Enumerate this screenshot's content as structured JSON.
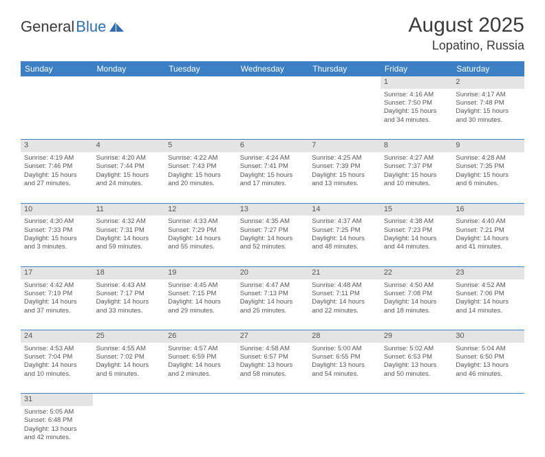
{
  "logo": {
    "text1": "General",
    "text2": "Blue"
  },
  "title": "August 2025",
  "location": "Lopatino, Russia",
  "colors": {
    "header_bg": "#3b7fc4",
    "header_fg": "#ffffff",
    "daynum_bg": "#e4e4e4",
    "text": "#444444",
    "rule": "#3b7fc4",
    "logo_gray": "#3a3a3a",
    "logo_blue": "#2f6fb0"
  },
  "weekdays": [
    "Sunday",
    "Monday",
    "Tuesday",
    "Wednesday",
    "Thursday",
    "Friday",
    "Saturday"
  ],
  "weeks": [
    [
      null,
      null,
      null,
      null,
      null,
      {
        "n": "1",
        "sunrise": "4:16 AM",
        "sunset": "7:50 PM",
        "daylight": "15 hours and 34 minutes."
      },
      {
        "n": "2",
        "sunrise": "4:17 AM",
        "sunset": "7:48 PM",
        "daylight": "15 hours and 30 minutes."
      }
    ],
    [
      {
        "n": "3",
        "sunrise": "4:19 AM",
        "sunset": "7:46 PM",
        "daylight": "15 hours and 27 minutes."
      },
      {
        "n": "4",
        "sunrise": "4:20 AM",
        "sunset": "7:44 PM",
        "daylight": "15 hours and 24 minutes."
      },
      {
        "n": "5",
        "sunrise": "4:22 AM",
        "sunset": "7:43 PM",
        "daylight": "15 hours and 20 minutes."
      },
      {
        "n": "6",
        "sunrise": "4:24 AM",
        "sunset": "7:41 PM",
        "daylight": "15 hours and 17 minutes."
      },
      {
        "n": "7",
        "sunrise": "4:25 AM",
        "sunset": "7:39 PM",
        "daylight": "15 hours and 13 minutes."
      },
      {
        "n": "8",
        "sunrise": "4:27 AM",
        "sunset": "7:37 PM",
        "daylight": "15 hours and 10 minutes."
      },
      {
        "n": "9",
        "sunrise": "4:28 AM",
        "sunset": "7:35 PM",
        "daylight": "15 hours and 6 minutes."
      }
    ],
    [
      {
        "n": "10",
        "sunrise": "4:30 AM",
        "sunset": "7:33 PM",
        "daylight": "15 hours and 3 minutes."
      },
      {
        "n": "11",
        "sunrise": "4:32 AM",
        "sunset": "7:31 PM",
        "daylight": "14 hours and 59 minutes."
      },
      {
        "n": "12",
        "sunrise": "4:33 AM",
        "sunset": "7:29 PM",
        "daylight": "14 hours and 55 minutes."
      },
      {
        "n": "13",
        "sunrise": "4:35 AM",
        "sunset": "7:27 PM",
        "daylight": "14 hours and 52 minutes."
      },
      {
        "n": "14",
        "sunrise": "4:37 AM",
        "sunset": "7:25 PM",
        "daylight": "14 hours and 48 minutes."
      },
      {
        "n": "15",
        "sunrise": "4:38 AM",
        "sunset": "7:23 PM",
        "daylight": "14 hours and 44 minutes."
      },
      {
        "n": "16",
        "sunrise": "4:40 AM",
        "sunset": "7:21 PM",
        "daylight": "14 hours and 41 minutes."
      }
    ],
    [
      {
        "n": "17",
        "sunrise": "4:42 AM",
        "sunset": "7:19 PM",
        "daylight": "14 hours and 37 minutes."
      },
      {
        "n": "18",
        "sunrise": "4:43 AM",
        "sunset": "7:17 PM",
        "daylight": "14 hours and 33 minutes."
      },
      {
        "n": "19",
        "sunrise": "4:45 AM",
        "sunset": "7:15 PM",
        "daylight": "14 hours and 29 minutes."
      },
      {
        "n": "20",
        "sunrise": "4:47 AM",
        "sunset": "7:13 PM",
        "daylight": "14 hours and 25 minutes."
      },
      {
        "n": "21",
        "sunrise": "4:48 AM",
        "sunset": "7:11 PM",
        "daylight": "14 hours and 22 minutes."
      },
      {
        "n": "22",
        "sunrise": "4:50 AM",
        "sunset": "7:08 PM",
        "daylight": "14 hours and 18 minutes."
      },
      {
        "n": "23",
        "sunrise": "4:52 AM",
        "sunset": "7:06 PM",
        "daylight": "14 hours and 14 minutes."
      }
    ],
    [
      {
        "n": "24",
        "sunrise": "4:53 AM",
        "sunset": "7:04 PM",
        "daylight": "14 hours and 10 minutes."
      },
      {
        "n": "25",
        "sunrise": "4:55 AM",
        "sunset": "7:02 PM",
        "daylight": "14 hours and 6 minutes."
      },
      {
        "n": "26",
        "sunrise": "4:57 AM",
        "sunset": "6:59 PM",
        "daylight": "14 hours and 2 minutes."
      },
      {
        "n": "27",
        "sunrise": "4:58 AM",
        "sunset": "6:57 PM",
        "daylight": "13 hours and 58 minutes."
      },
      {
        "n": "28",
        "sunrise": "5:00 AM",
        "sunset": "6:55 PM",
        "daylight": "13 hours and 54 minutes."
      },
      {
        "n": "29",
        "sunrise": "5:02 AM",
        "sunset": "6:53 PM",
        "daylight": "13 hours and 50 minutes."
      },
      {
        "n": "30",
        "sunrise": "5:04 AM",
        "sunset": "6:50 PM",
        "daylight": "13 hours and 46 minutes."
      }
    ],
    [
      {
        "n": "31",
        "sunrise": "5:05 AM",
        "sunset": "6:48 PM",
        "daylight": "13 hours and 42 minutes."
      },
      null,
      null,
      null,
      null,
      null,
      null
    ]
  ],
  "labels": {
    "sunrise": "Sunrise: ",
    "sunset": "Sunset: ",
    "daylight": "Daylight: "
  }
}
